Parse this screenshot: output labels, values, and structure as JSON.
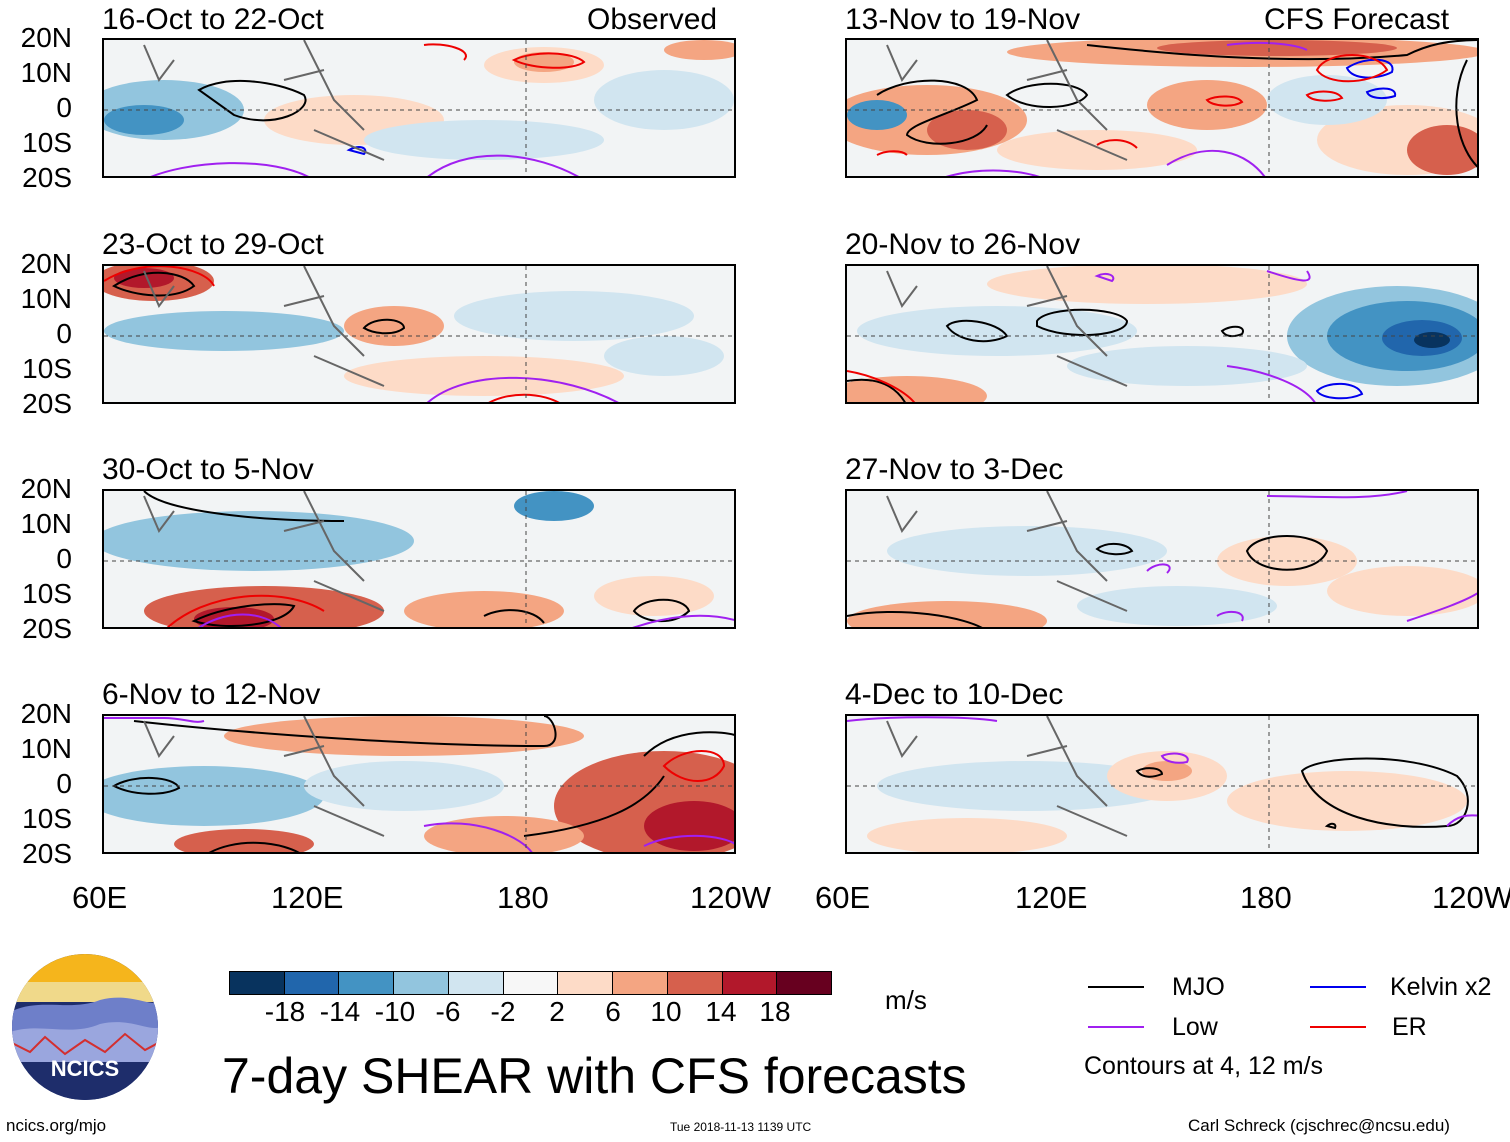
{
  "panels": {
    "left": [
      {
        "title": "16-Oct to 22-Oct",
        "label": "Observed"
      },
      {
        "title": "23-Oct to 29-Oct",
        "label": ""
      },
      {
        "title": "30-Oct to 5-Nov",
        "label": ""
      },
      {
        "title": "6-Nov to 12-Nov",
        "label": ""
      }
    ],
    "right": [
      {
        "title": "13-Nov to 19-Nov",
        "label": "CFS Forecast"
      },
      {
        "title": "20-Nov to 26-Nov",
        "label": ""
      },
      {
        "title": "27-Nov to 3-Dec",
        "label": ""
      },
      {
        "title": "4-Dec to 10-Dec",
        "label": ""
      }
    ]
  },
  "axes": {
    "lat_labels": [
      "20N",
      "10N",
      "0",
      "10S",
      "20S"
    ],
    "lon_labels": [
      "60E",
      "120E",
      "180",
      "120W"
    ]
  },
  "colorbar": {
    "ticks": [
      "-18",
      "-14",
      "-10",
      "-6",
      "-2",
      "2",
      "6",
      "10",
      "14",
      "18"
    ],
    "colors": [
      "#08335e",
      "#2166ac",
      "#4393c3",
      "#92c5de",
      "#d1e5f0",
      "#f7f7f7",
      "#fddbc7",
      "#f4a582",
      "#d6604d",
      "#b2182b",
      "#67001f"
    ],
    "units": "m/s"
  },
  "title": "7-day SHEAR with CFS forecasts",
  "legend": {
    "mjo": {
      "label": "MJO",
      "color": "#000000"
    },
    "kelvin": {
      "label": "Kelvin x2",
      "color": "#0000ee"
    },
    "low": {
      "label": "Low",
      "color": "#a020f0"
    },
    "er": {
      "label": "ER",
      "color": "#ee0000"
    },
    "note": "Contours at 4, 12 m/s"
  },
  "logo": {
    "text": "NCICS"
  },
  "footer": {
    "site": "ncics.org/mjo",
    "timestamp": "Tue 2018-11-13 1139 UTC",
    "author": "Carl Schreck (cjschrec@ncsu.edu)"
  }
}
